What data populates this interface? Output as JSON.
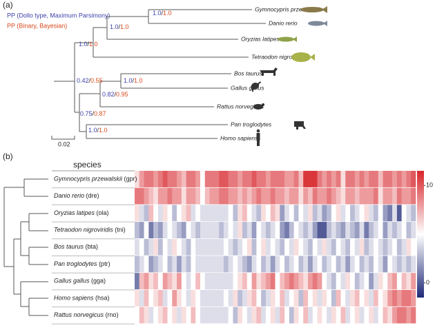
{
  "panel_a": {
    "label": "(a)",
    "legend": [
      "PP (Dollo type, Maximum Parsimony)",
      "PP (Binary, Bayesian)"
    ],
    "separator": "/",
    "tips": [
      "Gymnocypris przewalskii",
      "Danio rerio",
      "Oryzias latipes",
      "Tetraodon nigroviridis",
      "Bos taurus",
      "Gallus gallus",
      "Rattus norvegicus",
      "Pan troglodytes",
      "Homo sapiens"
    ],
    "nodes": [
      {
        "dollo": "1.0",
        "binary": "1.0"
      },
      {
        "dollo": "1.0",
        "binary": "1.0"
      },
      {
        "dollo": "1.0",
        "binary": "1.0"
      },
      {
        "dollo": "0.42",
        "binary": "0.55"
      },
      {
        "dollo": "1.0",
        "binary": "1.0"
      },
      {
        "dollo": "0.82",
        "binary": "0.95"
      },
      {
        "dollo": "0.75",
        "binary": "0.87"
      },
      {
        "dollo": "1.0",
        "binary": "1.0"
      }
    ],
    "scale_label": "0.02"
  },
  "panel_b": {
    "label": "(b)",
    "header": "species"
  },
  "chart_data": {
    "type": "heatmap",
    "rows": [
      {
        "species": "Gymnocypris przewalskii",
        "code": "(gpr)"
      },
      {
        "species": "Danio rerio",
        "code": "(dre)"
      },
      {
        "species": "Oryzias latipes",
        "code": "(ola)"
      },
      {
        "species": "Tetraodon nigroviridis",
        "code": "(tni)"
      },
      {
        "species": "Bos taurus",
        "code": "(bta)"
      },
      {
        "species": "Pan troglodytes",
        "code": "(ptr)"
      },
      {
        "species": "Gallus gallus",
        "code": "(gga)"
      },
      {
        "species": "Homo sapiens",
        "code": "(hsa)"
      },
      {
        "species": "Rattus norvegicus",
        "code": "(rno)"
      }
    ],
    "values": [
      [
        6,
        8,
        9,
        9,
        8,
        9,
        10,
        9,
        9,
        8,
        7,
        9,
        9,
        8,
        5,
        9,
        9,
        9,
        10,
        10,
        9,
        9,
        8,
        9,
        9,
        10,
        9,
        9,
        8,
        9,
        9,
        9,
        8,
        8,
        9,
        7,
        11,
        11,
        11,
        9,
        8,
        9,
        8,
        9,
        6,
        9,
        9,
        8,
        9,
        8,
        9,
        9,
        7,
        9,
        9,
        8,
        9,
        8,
        9,
        10
      ],
      [
        9,
        9,
        8,
        7,
        6,
        8,
        8,
        9,
        8,
        8,
        6,
        8,
        8,
        7,
        5,
        7,
        8,
        8,
        9,
        9,
        8,
        8,
        7,
        8,
        7,
        8,
        9,
        8,
        8,
        9,
        8,
        8,
        7,
        8,
        8,
        6,
        8,
        7,
        9,
        8,
        8,
        9,
        8,
        7,
        6,
        8,
        8,
        7,
        8,
        8,
        8,
        9,
        6,
        8,
        8,
        7,
        9,
        8,
        8,
        9
      ],
      [
        6,
        4,
        3,
        7,
        5,
        4,
        6,
        5,
        3,
        5,
        6,
        7,
        4,
        5,
        4,
        4,
        4,
        4,
        4,
        4,
        5,
        3,
        6,
        7,
        5,
        4,
        3,
        6,
        5,
        7,
        6,
        2,
        4,
        5,
        3,
        5,
        4,
        6,
        3,
        4,
        2,
        3,
        5,
        6,
        4,
        5,
        3,
        4,
        5,
        6,
        4,
        3,
        5,
        2,
        1,
        4,
        0,
        5,
        4,
        3
      ],
      [
        3,
        2,
        5,
        1,
        3,
        2,
        4,
        5,
        4,
        3,
        2,
        5,
        4,
        3,
        4,
        4,
        4,
        4,
        3,
        4,
        5,
        4,
        6,
        3,
        4,
        2,
        5,
        4,
        3,
        4,
        5,
        2,
        1,
        3,
        5,
        4,
        3,
        4,
        2,
        0,
        0,
        3,
        4,
        3,
        2,
        4,
        3,
        2,
        4,
        1,
        3,
        4,
        5,
        2,
        4,
        3,
        4,
        5,
        3,
        4
      ],
      [
        4,
        5,
        3,
        4,
        6,
        3,
        5,
        4,
        6,
        5,
        4,
        3,
        5,
        4,
        4,
        4,
        4,
        4,
        4,
        5,
        4,
        3,
        4,
        5,
        6,
        3,
        5,
        6,
        4,
        5,
        4,
        3,
        5,
        4,
        6,
        5,
        4,
        3,
        5,
        4,
        6,
        4,
        3,
        5,
        4,
        3,
        5,
        4,
        6,
        3,
        4,
        5,
        4,
        3,
        4,
        5,
        3,
        4,
        6,
        5
      ],
      [
        3,
        4,
        5,
        2,
        3,
        4,
        5,
        3,
        4,
        2,
        4,
        3,
        5,
        4,
        4,
        4,
        4,
        4,
        4,
        3,
        4,
        5,
        4,
        3,
        2,
        4,
        5,
        3,
        4,
        2,
        4,
        5,
        3,
        4,
        5,
        3,
        4,
        2,
        4,
        5,
        3,
        4,
        5,
        3,
        4,
        2,
        4,
        5,
        3,
        4,
        3,
        5,
        4,
        2,
        5,
        4,
        3,
        4,
        3,
        4
      ],
      [
        1,
        7,
        8,
        6,
        7,
        5,
        8,
        7,
        6,
        8,
        5,
        4,
        5,
        7,
        5,
        4,
        4,
        4,
        4,
        4,
        4,
        5,
        6,
        7,
        5,
        8,
        6,
        7,
        8,
        9,
        5,
        7,
        8,
        9,
        8,
        7,
        6,
        8,
        9,
        8,
        5,
        4,
        3,
        5,
        4,
        6,
        5,
        3,
        4,
        5,
        2,
        4,
        6,
        5,
        7,
        8,
        5,
        7,
        6,
        8
      ],
      [
        6,
        4,
        7,
        5,
        6,
        7,
        4,
        5,
        8,
        6,
        5,
        4,
        6,
        5,
        4,
        4,
        4,
        4,
        4,
        5,
        4,
        6,
        3,
        4,
        6,
        7,
        5,
        3,
        4,
        6,
        5,
        7,
        4,
        5,
        6,
        3,
        7,
        5,
        6,
        4,
        6,
        5,
        3,
        7,
        5,
        4,
        6,
        7,
        5,
        6,
        4,
        7,
        5,
        6,
        8,
        9,
        8,
        9,
        9,
        8
      ],
      [
        5,
        7,
        6,
        4,
        5,
        6,
        7,
        5,
        6,
        4,
        6,
        5,
        7,
        5,
        4,
        4,
        4,
        4,
        4,
        4,
        5,
        3,
        6,
        5,
        4,
        6,
        7,
        4,
        5,
        6,
        4,
        7,
        5,
        3,
        6,
        5,
        7,
        4,
        5,
        6,
        5,
        4,
        6,
        5,
        7,
        4,
        5,
        6,
        4,
        5,
        6,
        4,
        5,
        7,
        6,
        8,
        9,
        9,
        8,
        9
      ]
    ],
    "zlim": [
      -1.5,
      11.5
    ],
    "zticks": [
      0,
      10
    ],
    "colors": [
      "#1f2a78",
      "#ffffff",
      "#d7262b"
    ]
  }
}
